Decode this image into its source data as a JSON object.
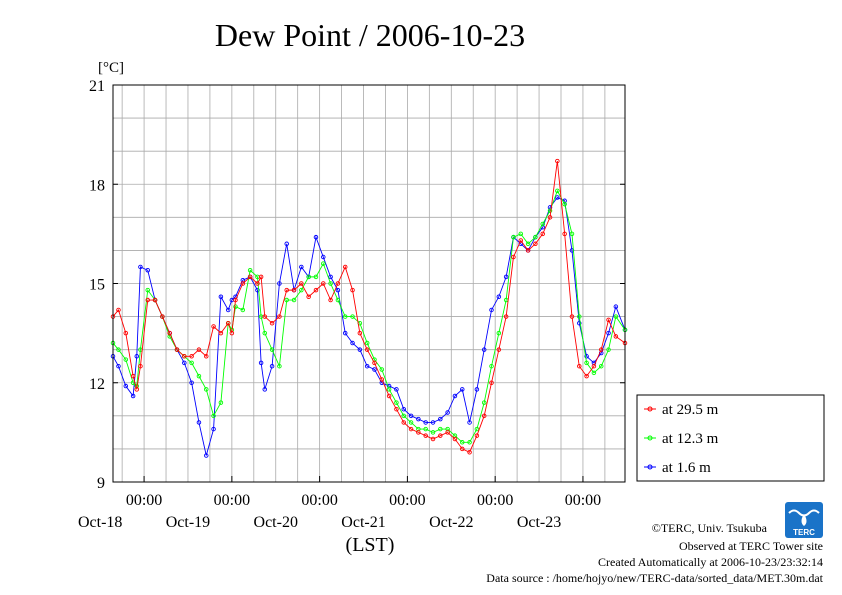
{
  "chart_data": {
    "type": "line",
    "title": "Dew Point / 2006-10-23",
    "unit_label": "[°C]",
    "xlabel": "(LST)",
    "ylim": [
      9,
      21
    ],
    "yticks": [
      9,
      12,
      15,
      18,
      21
    ],
    "xlim_hours": [
      -8.5,
      131.5
    ],
    "time_ticks": [
      {
        "time": "00:00",
        "date": "Oct-18"
      },
      {
        "time": "00:00",
        "date": "Oct-19"
      },
      {
        "time": "00:00",
        "date": "Oct-20"
      },
      {
        "time": "00:00",
        "date": "Oct-21"
      },
      {
        "time": "00:00",
        "date": "Oct-22"
      },
      {
        "time": "00:00",
        "date": "Oct-23"
      }
    ],
    "grid": true,
    "legend_position": "right-bottom",
    "series": [
      {
        "name": "at 29.5 m",
        "color": "#ff0000",
        "x": [
          -8.5,
          -7,
          -5,
          -3,
          -2,
          -1,
          1,
          3,
          5,
          7,
          9,
          11,
          13,
          15,
          17,
          19,
          21,
          23,
          24,
          25,
          27,
          29,
          31,
          32,
          33,
          35,
          37,
          39,
          41,
          43,
          45,
          47,
          49,
          51,
          53,
          55,
          57,
          59,
          61,
          63,
          65,
          67,
          69,
          71,
          73,
          75,
          77,
          79,
          81,
          83,
          85,
          87,
          89,
          91,
          93,
          95,
          97,
          99,
          101,
          103,
          105,
          107,
          109,
          111,
          113,
          115,
          117,
          119,
          121,
          123,
          125,
          127,
          129,
          131.5
        ],
        "y": [
          14.0,
          14.2,
          13.5,
          12.2,
          11.8,
          12.5,
          14.5,
          14.5,
          14.0,
          13.5,
          13.0,
          12.8,
          12.8,
          13.0,
          12.8,
          13.7,
          13.5,
          13.8,
          13.5,
          14.5,
          15.0,
          15.2,
          15.0,
          15.2,
          14.0,
          13.8,
          14.0,
          14.8,
          14.8,
          15.0,
          14.6,
          14.8,
          15.0,
          14.5,
          15.0,
          15.5,
          14.8,
          13.5,
          13.0,
          12.6,
          12.1,
          11.6,
          11.2,
          10.8,
          10.6,
          10.5,
          10.4,
          10.3,
          10.4,
          10.5,
          10.3,
          10.0,
          9.9,
          10.4,
          11.0,
          12.0,
          13.0,
          14.0,
          15.8,
          16.3,
          16.0,
          16.2,
          16.5,
          17.0,
          18.7,
          16.5,
          14.0,
          12.5,
          12.2,
          12.5,
          13.0,
          13.9,
          13.4,
          13.2
        ]
      },
      {
        "name": "at 12.3 m",
        "color": "#00ff00",
        "x": [
          -8.5,
          -7,
          -5,
          -3,
          -2,
          -1,
          1,
          3,
          5,
          7,
          9,
          11,
          13,
          15,
          17,
          19,
          21,
          23,
          24,
          25,
          27,
          29,
          31,
          32,
          33,
          35,
          37,
          39,
          41,
          43,
          45,
          47,
          49,
          51,
          53,
          55,
          57,
          59,
          61,
          63,
          65,
          67,
          69,
          71,
          73,
          75,
          77,
          79,
          81,
          83,
          85,
          87,
          89,
          91,
          93,
          95,
          97,
          99,
          101,
          103,
          105,
          107,
          109,
          111,
          113,
          115,
          117,
          119,
          121,
          123,
          125,
          127,
          129,
          131.5
        ],
        "y": [
          13.2,
          13.0,
          12.7,
          12.0,
          11.9,
          13.0,
          14.8,
          14.5,
          14.0,
          13.4,
          13.0,
          12.8,
          12.6,
          12.2,
          11.8,
          11.0,
          11.4,
          13.8,
          13.6,
          14.3,
          14.2,
          15.4,
          15.2,
          14.0,
          13.5,
          13.0,
          12.5,
          14.5,
          14.5,
          14.8,
          15.2,
          15.2,
          15.6,
          15.0,
          14.5,
          14.0,
          14.0,
          13.8,
          13.2,
          12.7,
          12.4,
          11.8,
          11.4,
          11.0,
          10.8,
          10.6,
          10.6,
          10.5,
          10.6,
          10.6,
          10.4,
          10.2,
          10.2,
          10.6,
          11.4,
          12.5,
          13.5,
          14.5,
          16.4,
          16.5,
          16.2,
          16.4,
          16.8,
          17.2,
          17.8,
          17.4,
          16.5,
          14.0,
          12.6,
          12.3,
          12.5,
          13.0,
          14.0,
          13.6
        ]
      },
      {
        "name": "at 1.6 m",
        "color": "#0000ff",
        "x": [
          -8.5,
          -7,
          -5,
          -3,
          -2,
          -1,
          1,
          3,
          5,
          7,
          9,
          11,
          13,
          15,
          17,
          19,
          21,
          23,
          24,
          25,
          27,
          29,
          31,
          32,
          33,
          35,
          37,
          39,
          41,
          43,
          45,
          47,
          49,
          51,
          53,
          55,
          57,
          59,
          61,
          63,
          65,
          67,
          69,
          71,
          73,
          75,
          77,
          79,
          81,
          83,
          85,
          87,
          89,
          91,
          93,
          95,
          97,
          99,
          101,
          103,
          105,
          107,
          109,
          111,
          113,
          115,
          117,
          119,
          121,
          123,
          125,
          127,
          129,
          131.5
        ],
        "y": [
          12.8,
          12.5,
          11.9,
          11.6,
          12.8,
          15.5,
          15.4,
          14.5,
          14.0,
          13.5,
          13.0,
          12.6,
          12.0,
          10.8,
          9.8,
          10.6,
          14.6,
          14.2,
          14.5,
          14.6,
          15.1,
          15.2,
          14.8,
          12.6,
          11.8,
          12.5,
          15.0,
          16.2,
          14.8,
          15.5,
          15.2,
          16.4,
          15.8,
          15.2,
          14.8,
          13.5,
          13.2,
          13.0,
          12.5,
          12.4,
          12.0,
          11.9,
          11.8,
          11.2,
          11.0,
          10.9,
          10.8,
          10.8,
          10.9,
          11.1,
          11.6,
          11.8,
          10.8,
          11.8,
          13.0,
          14.2,
          14.6,
          15.2,
          16.4,
          16.2,
          16.0,
          16.4,
          16.7,
          17.3,
          17.6,
          17.5,
          16.0,
          13.8,
          12.8,
          12.6,
          12.9,
          13.5,
          14.3,
          13.6
        ]
      }
    ]
  },
  "credits": {
    "copyright": "©TERC, Univ. Tsukuba",
    "observed": "Observed at TERC Tower site",
    "created": "Created Automatically at 2006-10-23/23:32:14",
    "source": "Data source : /home/hojyo/new/TERC-data/sorted_data/MET.30m.dat",
    "logo_text": "TERC"
  }
}
